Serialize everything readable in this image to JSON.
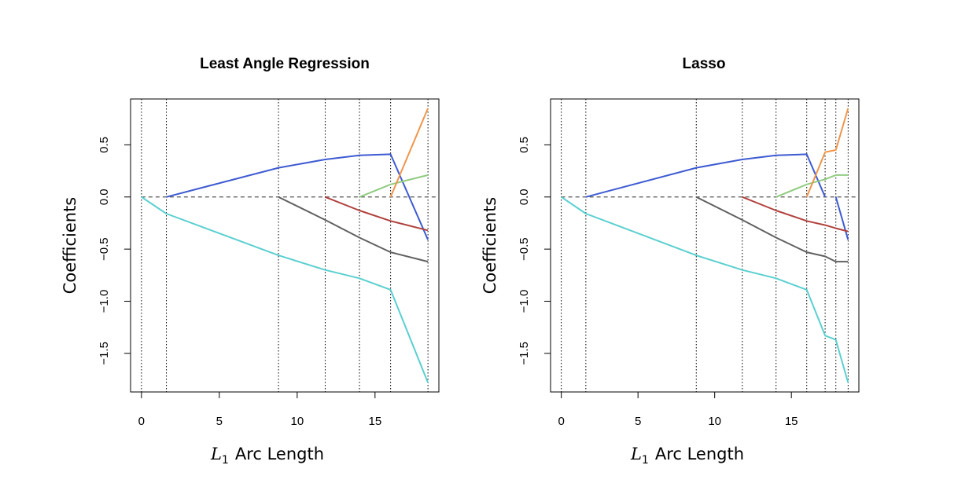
{
  "chart_data": [
    {
      "type": "line",
      "title": "Least Angle Regression",
      "xlabel_var": "L",
      "xlabel_sub": "1",
      "xlabel_text": "Arc Length",
      "ylabel": "Coefficients",
      "xlim": [
        -0.7,
        19.1
      ],
      "ylim": [
        -1.87,
        0.94
      ],
      "xticks": [
        0,
        5,
        10,
        15
      ],
      "xtick_labels": [
        "0",
        "5",
        "10",
        "15"
      ],
      "yticks": [
        -1.5,
        -1.0,
        -0.5,
        0.0,
        0.5
      ],
      "ytick_labels": [
        "−1.5",
        "−1.0",
        "−0.5",
        "0.0",
        "0.5"
      ],
      "zero_line": true,
      "breakpoints": [
        0,
        1.6,
        8.8,
        11.8,
        14.0,
        16.0,
        18.4
      ],
      "series": [
        {
          "color": "#5BCFD0",
          "x": [
            0,
            1.6,
            8.8,
            11.8,
            14.0,
            16.0,
            18.4
          ],
          "y": [
            0,
            -0.16,
            -0.56,
            -0.7,
            -0.78,
            -0.89,
            -1.78
          ]
        },
        {
          "color": "#3E5BD2",
          "x": [
            1.6,
            8.8,
            11.8,
            14.0,
            16.0,
            18.4
          ],
          "y": [
            0,
            0.28,
            0.36,
            0.4,
            0.41,
            -0.41
          ]
        },
        {
          "color": "#606060",
          "x": [
            8.8,
            11.8,
            14.0,
            16.0,
            18.4
          ],
          "y": [
            0,
            -0.22,
            -0.39,
            -0.53,
            -0.62
          ]
        },
        {
          "color": "#B0413E",
          "x": [
            11.8,
            14.0,
            16.0,
            18.4
          ],
          "y": [
            0,
            -0.13,
            -0.23,
            -0.32
          ]
        },
        {
          "color": "#90CC80",
          "x": [
            14.0,
            16.0,
            18.4
          ],
          "y": [
            0,
            0.12,
            0.21
          ]
        },
        {
          "color": "#F0954A",
          "x": [
            16.0,
            18.4
          ],
          "y": [
            0,
            0.85
          ]
        }
      ]
    },
    {
      "type": "line",
      "title": "Lasso",
      "xlabel_var": "L",
      "xlabel_sub": "1",
      "xlabel_text": "Arc Length",
      "ylabel": "Coefficients",
      "xlim": [
        -0.7,
        19.4
      ],
      "ylim": [
        -1.87,
        0.94
      ],
      "xticks": [
        0,
        5,
        10,
        15
      ],
      "xtick_labels": [
        "0",
        "5",
        "10",
        "15"
      ],
      "yticks": [
        -1.5,
        -1.0,
        -0.5,
        0.0,
        0.5
      ],
      "ytick_labels": [
        "−1.5",
        "−1.0",
        "−0.5",
        "0.0",
        "0.5"
      ],
      "zero_line": true,
      "breakpoints": [
        0,
        1.6,
        8.8,
        11.8,
        14.0,
        16.0,
        17.2,
        17.9,
        18.7
      ],
      "series": [
        {
          "color": "#5BCFD0",
          "x": [
            0,
            1.6,
            8.8,
            11.8,
            14.0,
            16.0,
            17.2,
            17.9,
            18.7
          ],
          "y": [
            0,
            -0.16,
            -0.56,
            -0.7,
            -0.78,
            -0.89,
            -1.33,
            -1.37,
            -1.78
          ]
        },
        {
          "color": "#3E5BD2",
          "x": [
            1.6,
            8.8,
            11.8,
            14.0,
            16.0,
            17.2
          ],
          "y": [
            0,
            0.28,
            0.36,
            0.4,
            0.41,
            0
          ]
        },
        {
          "color": "#3E5BD2",
          "x": [
            17.9,
            18.7
          ],
          "y": [
            0,
            -0.41
          ]
        },
        {
          "color": "#606060",
          "x": [
            8.8,
            11.8,
            14.0,
            16.0,
            17.2,
            17.9,
            18.7
          ],
          "y": [
            0,
            -0.22,
            -0.39,
            -0.53,
            -0.57,
            -0.62,
            -0.62
          ]
        },
        {
          "color": "#B0413E",
          "x": [
            11.8,
            14.0,
            16.0,
            17.2,
            17.9,
            18.7
          ],
          "y": [
            0,
            -0.13,
            -0.23,
            -0.27,
            -0.3,
            -0.33
          ]
        },
        {
          "color": "#90CC80",
          "x": [
            14.0,
            16.0,
            17.2,
            17.9,
            18.7
          ],
          "y": [
            0,
            0.12,
            0.17,
            0.21,
            0.21
          ]
        },
        {
          "color": "#F0954A",
          "x": [
            16.0,
            17.2,
            17.9,
            18.7
          ],
          "y": [
            0,
            0.43,
            0.45,
            0.85
          ]
        }
      ]
    }
  ]
}
